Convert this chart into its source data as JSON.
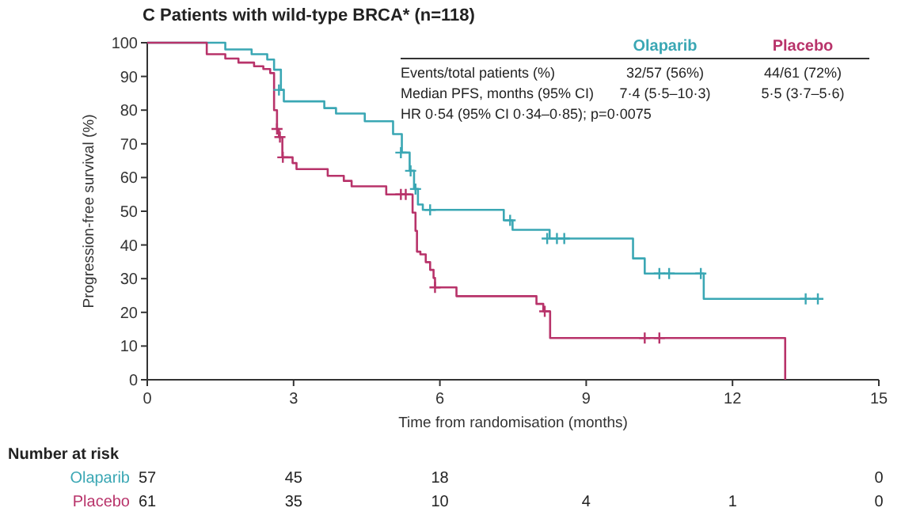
{
  "chart_data": {
    "type": "step",
    "title": "C  Patients with wild-type BRCA* (n=118)",
    "xlabel": "Time from randomisation (months)",
    "ylabel": "Progression-free survival (%)",
    "xlim": [
      0,
      15
    ],
    "xticks": [
      0,
      3,
      6,
      9,
      12,
      15
    ],
    "ylim": [
      0,
      100
    ],
    "yticks": [
      0,
      10,
      20,
      30,
      40,
      50,
      60,
      70,
      80,
      90,
      100
    ],
    "grid": false,
    "marker": "none",
    "line_style": "solid",
    "series": [
      {
        "name": "Olaparib",
        "color": "#3aa7b4",
        "x": [
          0,
          1.6,
          2.14,
          2.46,
          2.6,
          2.74,
          2.8,
          3.63,
          3.87,
          4.46,
          5.04,
          5.22,
          5.38,
          5.47,
          5.55,
          5.65,
          7.31,
          7.49,
          8.25,
          9.96,
          10.2,
          11.41,
          13.76
        ],
        "values": [
          100,
          98,
          96.6,
          95,
          92,
          86,
          82.6,
          80.6,
          79,
          76.7,
          72.9,
          67.4,
          62,
          56.6,
          52,
          50.4,
          47.3,
          44.5,
          41.9,
          36,
          31.5,
          24,
          24
        ]
      },
      {
        "name": "Placebo",
        "color": "#b8336a",
        "x": [
          0,
          1.22,
          1.6,
          1.87,
          2.19,
          2.38,
          2.52,
          2.6,
          2.66,
          2.7,
          2.77,
          2.98,
          3.06,
          3.7,
          4.03,
          4.19,
          4.9,
          5.44,
          5.5,
          5.53,
          5.6,
          5.71,
          5.8,
          5.87,
          5.9,
          6.34,
          7.98,
          8.12,
          8.26,
          13.08
        ],
        "values": [
          100,
          96.6,
          95.3,
          94.1,
          93,
          92.2,
          91,
          80,
          74.4,
          72,
          66,
          64.3,
          62.5,
          60.5,
          59,
          57.4,
          55,
          49.6,
          44.2,
          38,
          37.2,
          34.9,
          32.6,
          30.2,
          27.4,
          24.8,
          22.5,
          20.3,
          12.4,
          0
        ]
      },
      {
        "type": "scatter",
        "marker": "cross",
        "color": "#3aa7b4",
        "x": [
          2.7,
          5.2,
          5.4,
          5.5,
          5.8,
          7.44,
          8.2,
          8.4,
          8.55,
          10.5,
          10.7,
          11.35,
          13.5,
          13.75
        ],
        "values": [
          86,
          67.4,
          62,
          56.6,
          50.4,
          47.3,
          41.9,
          41.9,
          41.9,
          31.5,
          31.5,
          31.5,
          24,
          24
        ]
      },
      {
        "type": "scatter",
        "marker": "cross",
        "color": "#b8336a",
        "x": [
          2.66,
          2.72,
          2.78,
          5.2,
          5.3,
          5.9,
          8.15,
          10.2,
          10.5
        ],
        "values": [
          74.4,
          72,
          66,
          55,
          55,
          27.4,
          20.3,
          12.4,
          12.4
        ]
      }
    ],
    "annotations": [
      "Events/total patients (%)",
      "32/57 (56%)",
      "44/61 (72%)",
      "Median PFS, months (95% CI)",
      "7·4 (5·5–10·3)",
      "5·5 (3·7–5·6)",
      "HR 0·54 (95% CI 0·34–0·85); p=0·0075",
      "Number at risk",
      "57",
      "45",
      "18",
      null,
      null,
      "0",
      "61",
      "35",
      "10",
      "4",
      "1",
      "0"
    ]
  }
}
